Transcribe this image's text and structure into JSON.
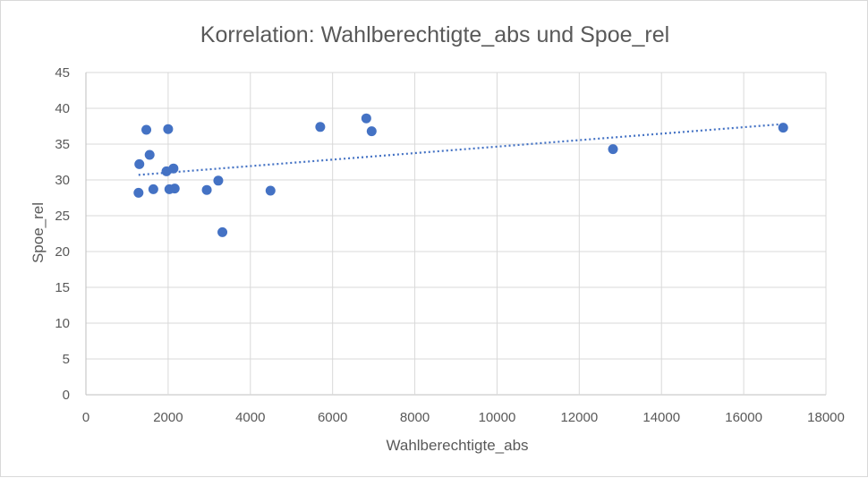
{
  "chart_data": {
    "type": "scatter",
    "title": "Korrelation: Wahlberechtigte_abs und Spoe_rel",
    "xlabel": "Wahlberechtigte_abs",
    "ylabel": "Spoe_rel",
    "xlim": [
      0,
      18000
    ],
    "ylim": [
      0,
      45
    ],
    "x_ticks": [
      0,
      2000,
      4000,
      6000,
      8000,
      10000,
      12000,
      14000,
      16000,
      18000
    ],
    "y_ticks": [
      0,
      5,
      10,
      15,
      20,
      25,
      30,
      35,
      40,
      45
    ],
    "grid": true,
    "legend": "none",
    "series": [
      {
        "color": "#4472c4",
        "points": [
          {
            "x": 1280,
            "y": 28.2
          },
          {
            "x": 1300,
            "y": 32.2
          },
          {
            "x": 1470,
            "y": 37.0
          },
          {
            "x": 1550,
            "y": 33.5
          },
          {
            "x": 1640,
            "y": 28.7
          },
          {
            "x": 1960,
            "y": 31.2
          },
          {
            "x": 2000,
            "y": 37.1
          },
          {
            "x": 2030,
            "y": 28.7
          },
          {
            "x": 2130,
            "y": 31.6
          },
          {
            "x": 2160,
            "y": 28.8
          },
          {
            "x": 2940,
            "y": 28.6
          },
          {
            "x": 3220,
            "y": 29.9
          },
          {
            "x": 3320,
            "y": 22.7
          },
          {
            "x": 4490,
            "y": 28.5
          },
          {
            "x": 5700,
            "y": 37.4
          },
          {
            "x": 6820,
            "y": 38.6
          },
          {
            "x": 6950,
            "y": 36.8
          },
          {
            "x": 12820,
            "y": 34.3
          },
          {
            "x": 16960,
            "y": 37.3
          }
        ]
      }
    ],
    "trendline": {
      "type": "linear",
      "style": "dotted",
      "color": "#4472c4",
      "start": {
        "x": 1280,
        "y": 30.7
      },
      "end": {
        "x": 16960,
        "y": 37.8
      }
    }
  }
}
